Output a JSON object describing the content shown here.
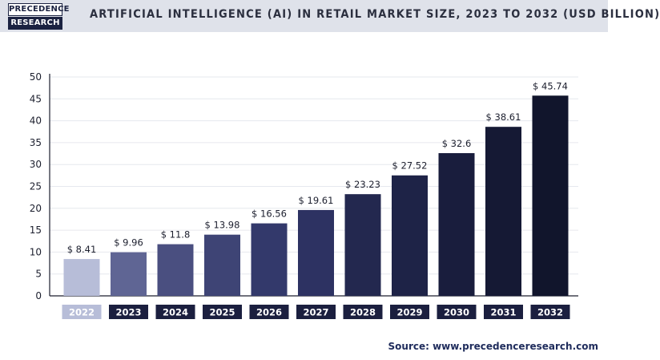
{
  "header": {
    "logo_line1": "PRECEDENCE",
    "logo_line2": "RESEARCH",
    "title": "ARTIFICIAL INTELLIGENCE (AI) IN RETAIL MARKET SIZE, 2023 TO 2032 (USD BILLION)"
  },
  "source": "Source: www.precedenceresearch.com",
  "chart_data": {
    "type": "bar",
    "title": "ARTIFICIAL INTELLIGENCE (AI) IN RETAIL MARKET SIZE, 2023 TO 2032 (USD BILLION)",
    "categories": [
      "2022",
      "2023",
      "2024",
      "2025",
      "2026",
      "2027",
      "2028",
      "2029",
      "2030",
      "2031",
      "2032"
    ],
    "values": [
      8.41,
      9.96,
      11.8,
      13.98,
      16.56,
      19.61,
      23.23,
      27.52,
      32.6,
      38.61,
      45.74
    ],
    "data_labels": [
      "$ 8.41",
      "$ 9.96",
      "$ 11.8",
      "$ 13.98",
      "$ 16.56",
      "$ 19.61",
      "$ 23.23",
      "$ 27.52",
      "$ 32.6",
      "$ 38.61",
      "$ 45.74"
    ],
    "yticks": [
      0,
      5,
      10,
      15,
      20,
      25,
      30,
      35,
      40,
      45,
      50
    ],
    "ylim": [
      0,
      50
    ],
    "grid": true,
    "colors": [
      "#b7bdd8",
      "#5f6594",
      "#4a4f80",
      "#3e4475",
      "#33396b",
      "#2d3262",
      "#23284f",
      "#1e2347",
      "#191d3d",
      "#151934",
      "#11152c"
    ],
    "category_label_bg": [
      "#b7bdd8",
      "#1b1f3f",
      "#1b1f3f",
      "#1b1f3f",
      "#1b1f3f",
      "#1b1f3f",
      "#1b1f3f",
      "#1b1f3f",
      "#1b1f3f",
      "#1b1f3f",
      "#1b1f3f"
    ]
  }
}
